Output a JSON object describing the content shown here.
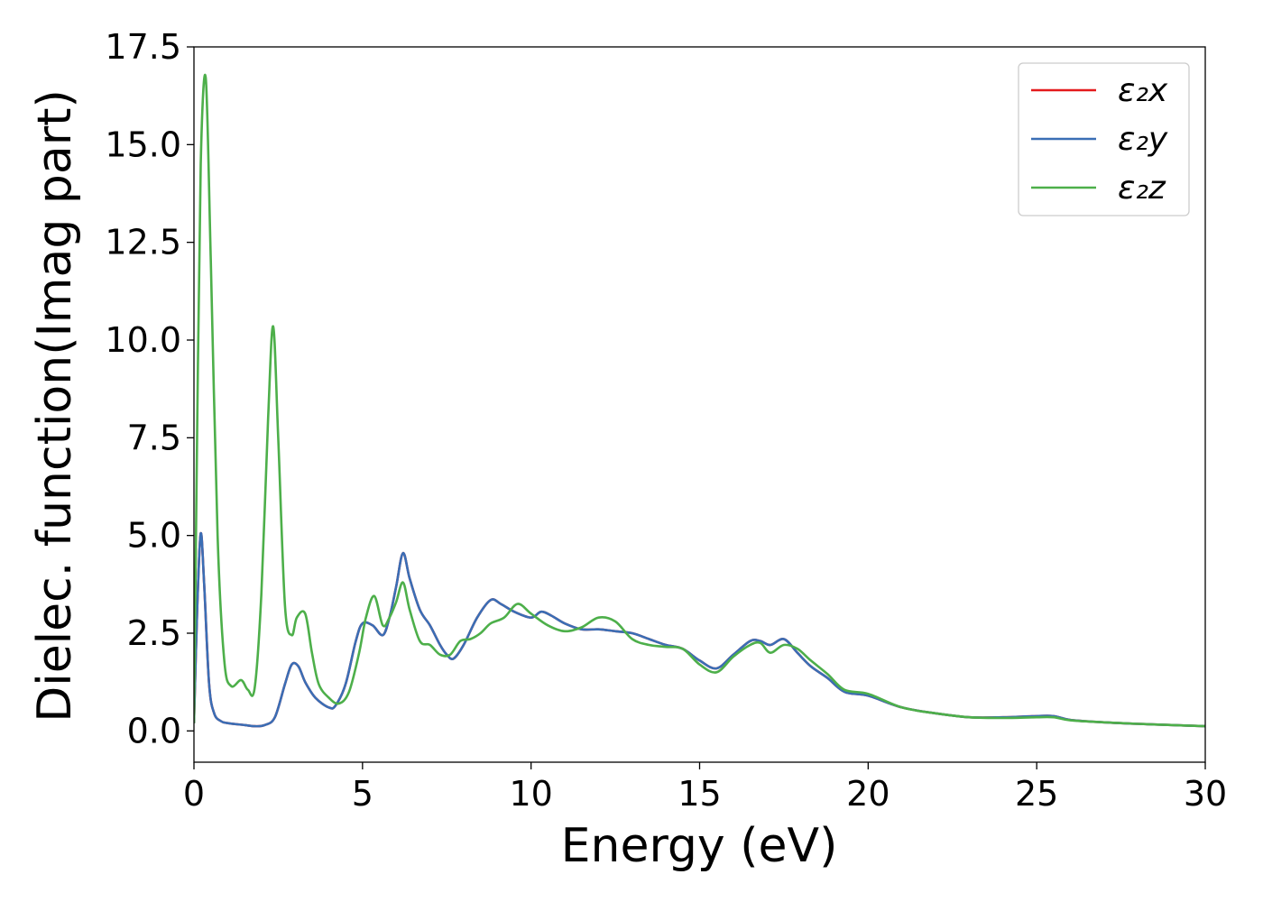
{
  "chart_data": {
    "type": "line",
    "title": "",
    "xlabel": "Energy (eV)",
    "ylabel": "Dielec. function(Imag part)",
    "xlim": [
      0,
      30
    ],
    "ylim": [
      -0.8,
      17.5
    ],
    "xticks": [
      0,
      5,
      10,
      15,
      20,
      25,
      30
    ],
    "xtick_labels": [
      "0",
      "5",
      "10",
      "15",
      "20",
      "25",
      "30"
    ],
    "yticks": [
      0,
      2.5,
      5,
      7.5,
      10,
      12.5,
      15,
      17.5
    ],
    "ytick_labels": [
      "0.0",
      "2.5",
      "5.0",
      "7.5",
      "10.0",
      "12.5",
      "15.0",
      "17.5"
    ],
    "grid": false,
    "legend_position": "top-right",
    "series": [
      {
        "name": "ε₂x",
        "color": "#e41a1c",
        "x": [
          0,
          0.1,
          0.2,
          0.3,
          0.45,
          0.6,
          0.8,
          1.0,
          1.5,
          1.8,
          2.1,
          2.4,
          2.7,
          2.9,
          3.1,
          3.3,
          3.6,
          4.0,
          4.2,
          4.5,
          4.8,
          5.0,
          5.3,
          5.6,
          5.8,
          6.0,
          6.2,
          6.4,
          6.7,
          7.0,
          7.3,
          7.5,
          7.7,
          8.0,
          8.4,
          8.8,
          9.1,
          9.5,
          10.0,
          10.3,
          10.6,
          11.0,
          11.5,
          12.0,
          12.5,
          13.0,
          13.5,
          14.0,
          14.5,
          15.0,
          15.5,
          16.0,
          16.5,
          16.8,
          17.1,
          17.5,
          17.9,
          18.3,
          18.8,
          19.3,
          20.0,
          21.0,
          22.0,
          23.0,
          24.0,
          25.0,
          25.5,
          26.0,
          27.0,
          28.0,
          29.0,
          30.0
        ],
        "values": [
          0.2,
          3.2,
          5.05,
          3.8,
          1.2,
          0.45,
          0.25,
          0.2,
          0.15,
          0.12,
          0.15,
          0.35,
          1.2,
          1.7,
          1.65,
          1.25,
          0.85,
          0.6,
          0.65,
          1.2,
          2.3,
          2.75,
          2.7,
          2.45,
          2.9,
          3.7,
          4.55,
          3.9,
          3.1,
          2.7,
          2.2,
          1.95,
          1.85,
          2.2,
          2.9,
          3.35,
          3.25,
          3.05,
          2.9,
          3.05,
          2.95,
          2.75,
          2.6,
          2.6,
          2.55,
          2.5,
          2.35,
          2.2,
          2.1,
          1.8,
          1.6,
          1.95,
          2.3,
          2.3,
          2.2,
          2.35,
          2.0,
          1.65,
          1.35,
          1.0,
          0.9,
          0.6,
          0.45,
          0.35,
          0.35,
          0.38,
          0.38,
          0.28,
          0.22,
          0.18,
          0.15,
          0.12
        ]
      },
      {
        "name": "ε₂y",
        "color": "#3a6eb5",
        "x": [
          0,
          0.1,
          0.2,
          0.3,
          0.45,
          0.6,
          0.8,
          1.0,
          1.5,
          1.8,
          2.1,
          2.4,
          2.7,
          2.9,
          3.1,
          3.3,
          3.6,
          4.0,
          4.2,
          4.5,
          4.8,
          5.0,
          5.3,
          5.6,
          5.8,
          6.0,
          6.2,
          6.4,
          6.7,
          7.0,
          7.3,
          7.5,
          7.7,
          8.0,
          8.4,
          8.8,
          9.1,
          9.5,
          10.0,
          10.3,
          10.6,
          11.0,
          11.5,
          12.0,
          12.5,
          13.0,
          13.5,
          14.0,
          14.5,
          15.0,
          15.5,
          16.0,
          16.5,
          16.8,
          17.1,
          17.5,
          17.9,
          18.3,
          18.8,
          19.3,
          20.0,
          21.0,
          22.0,
          23.0,
          24.0,
          25.0,
          25.5,
          26.0,
          27.0,
          28.0,
          29.0,
          30.0
        ],
        "values": [
          0.2,
          3.2,
          5.05,
          3.8,
          1.2,
          0.45,
          0.25,
          0.2,
          0.15,
          0.12,
          0.15,
          0.35,
          1.2,
          1.7,
          1.65,
          1.25,
          0.85,
          0.6,
          0.65,
          1.2,
          2.3,
          2.75,
          2.7,
          2.45,
          2.9,
          3.7,
          4.55,
          3.9,
          3.1,
          2.7,
          2.2,
          1.95,
          1.85,
          2.2,
          2.9,
          3.35,
          3.25,
          3.05,
          2.9,
          3.05,
          2.95,
          2.75,
          2.6,
          2.6,
          2.55,
          2.5,
          2.35,
          2.2,
          2.1,
          1.8,
          1.6,
          1.95,
          2.3,
          2.3,
          2.2,
          2.35,
          2.0,
          1.65,
          1.35,
          1.0,
          0.9,
          0.6,
          0.45,
          0.35,
          0.35,
          0.38,
          0.38,
          0.28,
          0.22,
          0.18,
          0.15,
          0.12
        ]
      },
      {
        "name": "ε₂z",
        "color": "#4daf4a",
        "x": [
          0,
          0.1,
          0.2,
          0.35,
          0.5,
          0.7,
          0.9,
          1.1,
          1.4,
          1.6,
          1.8,
          2.0,
          2.2,
          2.35,
          2.5,
          2.7,
          2.9,
          3.05,
          3.3,
          3.5,
          3.7,
          4.0,
          4.3,
          4.6,
          4.9,
          5.1,
          5.35,
          5.6,
          5.8,
          6.0,
          6.2,
          6.4,
          6.7,
          7.0,
          7.3,
          7.6,
          7.9,
          8.2,
          8.5,
          8.8,
          9.2,
          9.6,
          10.0,
          10.5,
          11.0,
          11.5,
          12.0,
          12.5,
          13.0,
          13.5,
          14.0,
          14.5,
          15.0,
          15.5,
          16.0,
          16.5,
          16.8,
          17.1,
          17.5,
          17.9,
          18.3,
          18.8,
          19.3,
          20.0,
          21.0,
          22.0,
          23.0,
          24.0,
          25.0,
          25.5,
          26.0,
          27.0,
          28.0,
          29.0,
          30.0
        ],
        "values": [
          0.2,
          8.0,
          14.5,
          16.7,
          12.0,
          5.0,
          1.8,
          1.15,
          1.3,
          1.05,
          1.1,
          3.5,
          8.0,
          10.35,
          7.5,
          3.2,
          2.45,
          2.9,
          3.0,
          2.0,
          1.2,
          0.85,
          0.7,
          1.0,
          2.0,
          2.9,
          3.45,
          2.7,
          2.9,
          3.3,
          3.8,
          3.1,
          2.3,
          2.2,
          1.95,
          1.95,
          2.3,
          2.35,
          2.5,
          2.75,
          2.9,
          3.25,
          3.0,
          2.7,
          2.55,
          2.65,
          2.9,
          2.8,
          2.35,
          2.2,
          2.15,
          2.1,
          1.7,
          1.5,
          1.9,
          2.2,
          2.25,
          2.0,
          2.2,
          2.1,
          1.8,
          1.45,
          1.05,
          0.95,
          0.6,
          0.45,
          0.35,
          0.33,
          0.35,
          0.35,
          0.27,
          0.22,
          0.18,
          0.15,
          0.12
        ]
      }
    ]
  }
}
